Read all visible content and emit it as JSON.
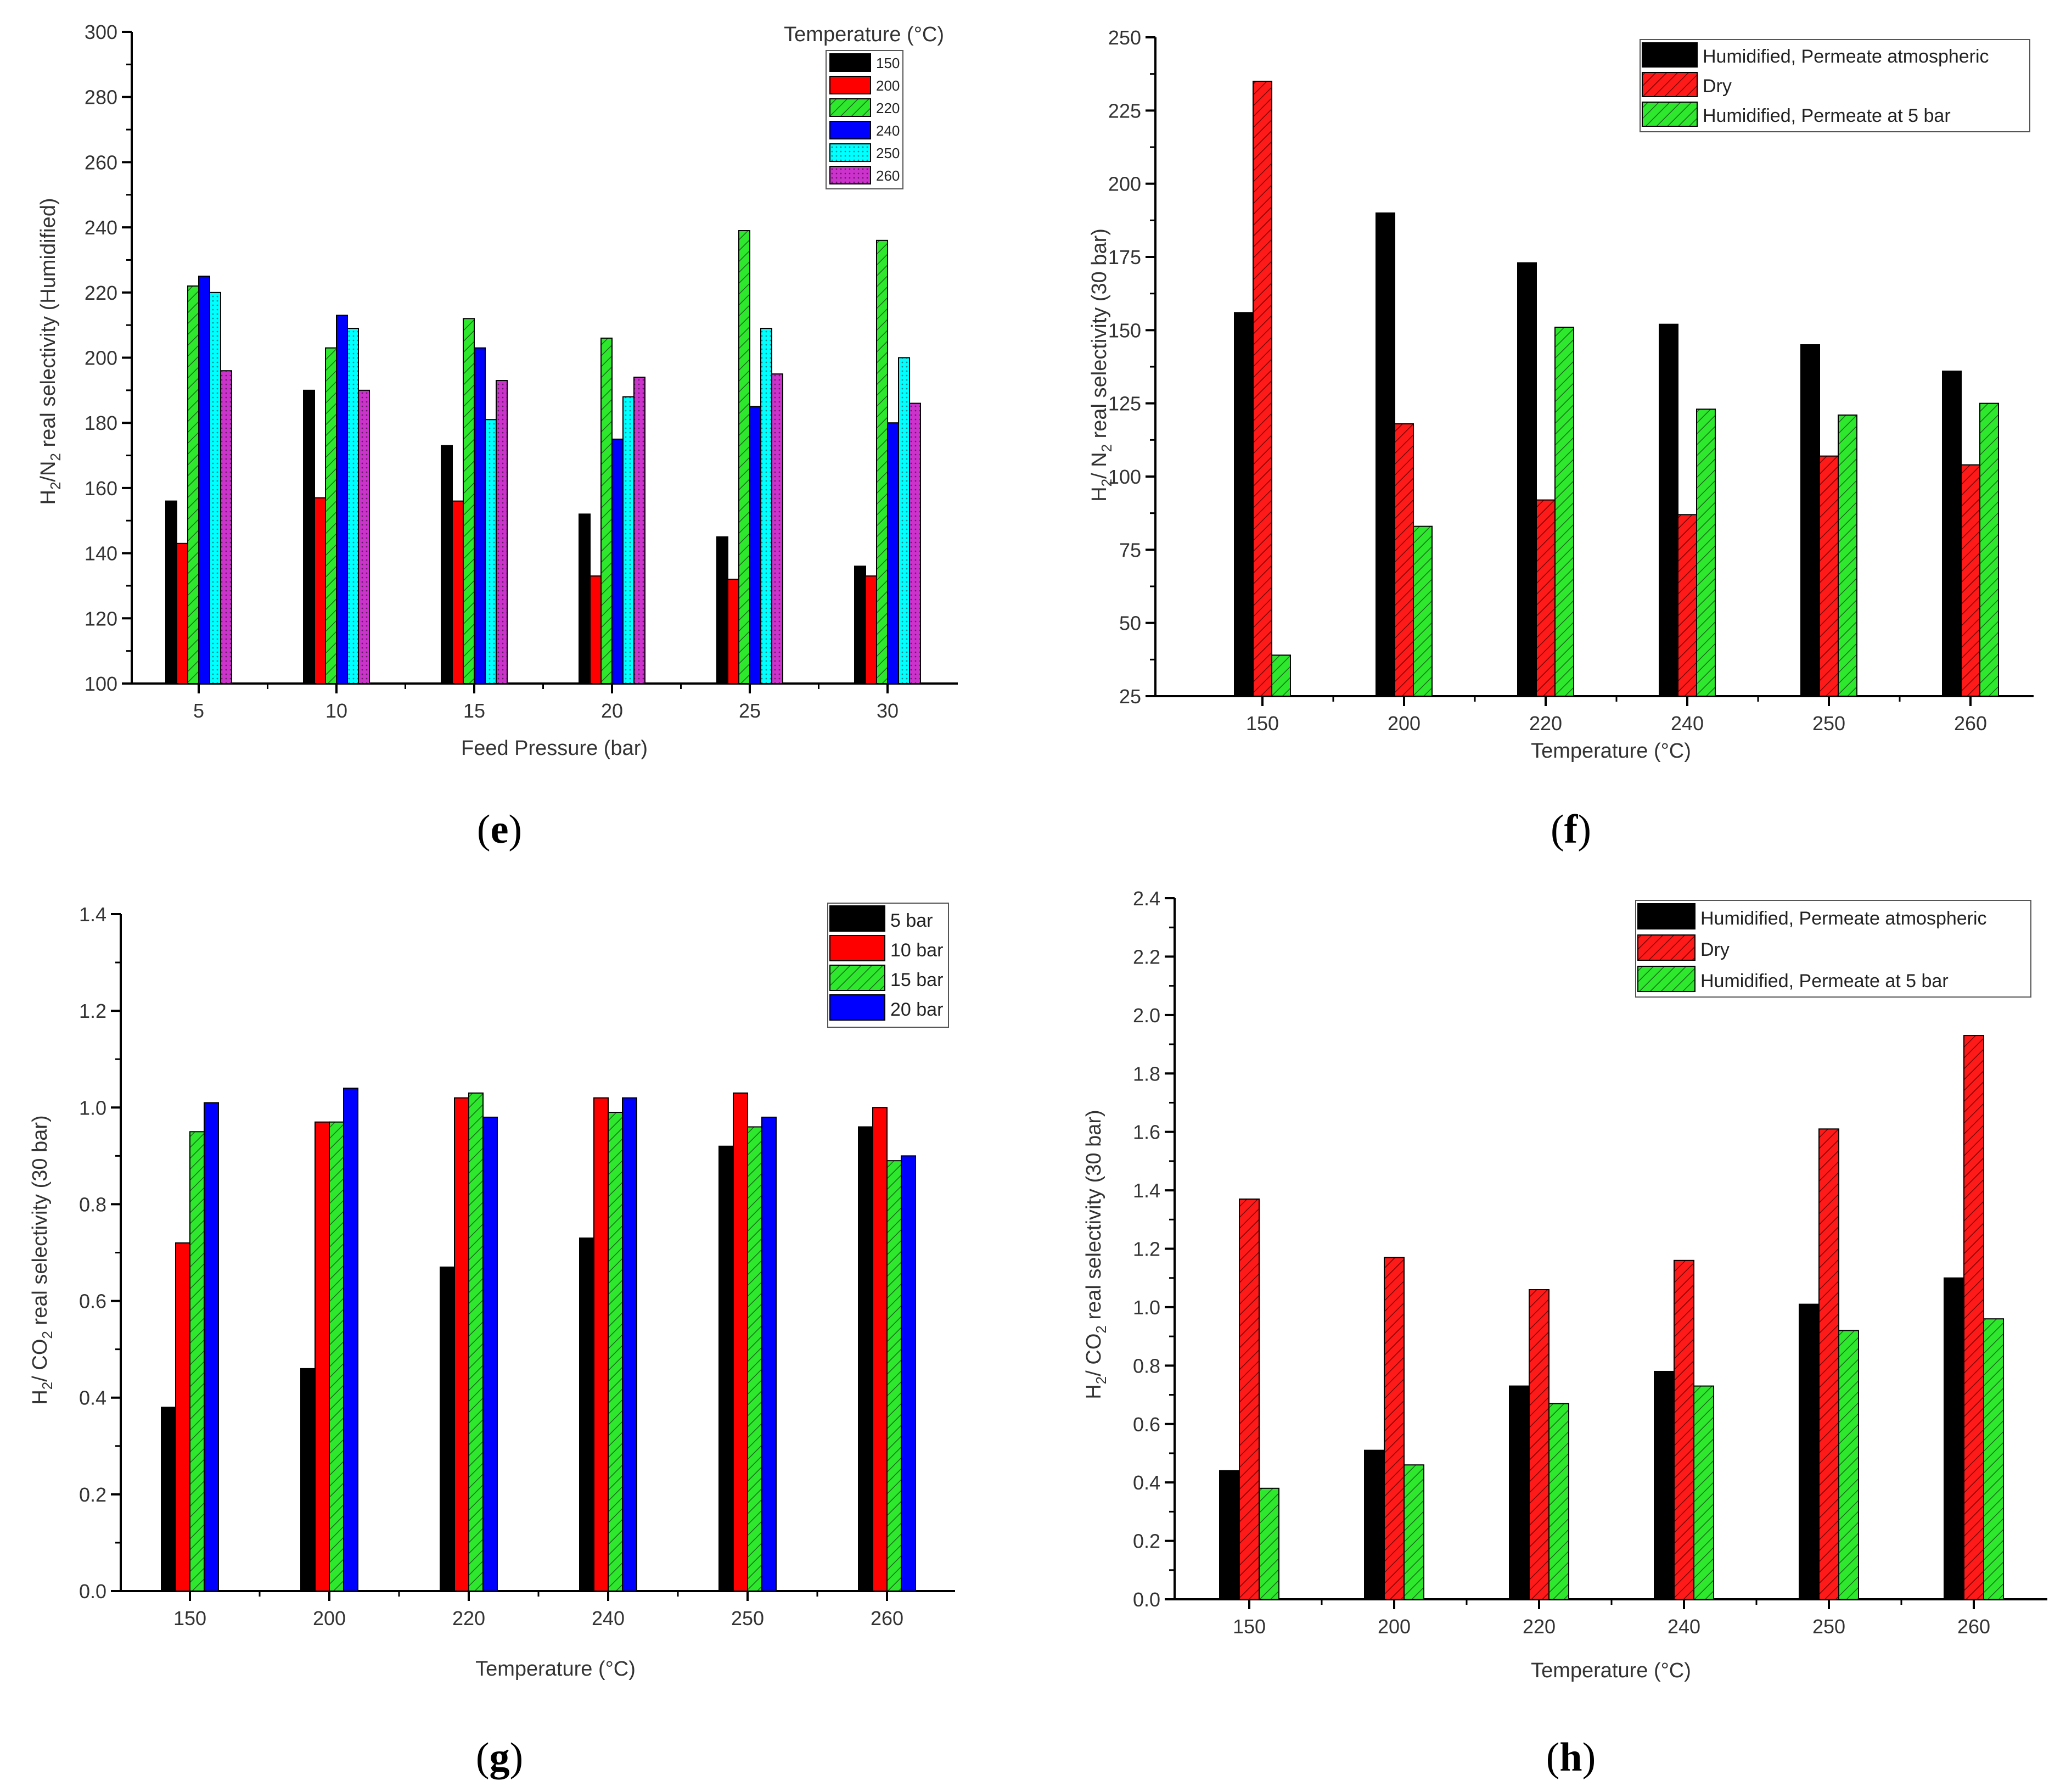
{
  "chart_data": [
    {
      "id": "e",
      "panel_label": "e",
      "type": "bar",
      "ylabel": "H2/N2 real selectivity (Humidified)",
      "xlabel": "Feed Pressure (bar)",
      "legend_title": "Temperature (°C)",
      "ylim": [
        100,
        300
      ],
      "yticks": [
        100,
        120,
        140,
        160,
        180,
        200,
        220,
        240,
        260,
        280,
        300
      ],
      "categories": [
        "5",
        "10",
        "15",
        "20",
        "25",
        "30"
      ],
      "series": [
        {
          "name": "150",
          "color": "#000000",
          "pattern": "solid",
          "values": [
            156,
            190,
            173,
            152,
            145,
            136
          ]
        },
        {
          "name": "200",
          "color": "#ff0000",
          "pattern": "solid",
          "values": [
            143,
            157,
            156,
            133,
            132,
            133
          ]
        },
        {
          "name": "220",
          "color": "#2ee82e",
          "pattern": "hatch",
          "values": [
            222,
            203,
            212,
            206,
            239,
            236
          ]
        },
        {
          "name": "240",
          "color": "#0000ff",
          "pattern": "solid",
          "values": [
            225,
            213,
            203,
            175,
            185,
            180
          ]
        },
        {
          "name": "250",
          "color": "#00ffff",
          "pattern": "dots",
          "values": [
            220,
            209,
            181,
            188,
            209,
            200
          ]
        },
        {
          "name": "260",
          "color": "#cc33cc",
          "pattern": "dots",
          "values": [
            196,
            190,
            193,
            194,
            195,
            186
          ]
        }
      ]
    },
    {
      "id": "f",
      "panel_label": "f",
      "type": "bar",
      "ylabel": "H2/N2 real selectivity (30 bar)",
      "xlabel": "Temperature (°C)",
      "ylim": [
        25,
        250
      ],
      "yticks": [
        25,
        50,
        75,
        100,
        125,
        150,
        175,
        200,
        225,
        250
      ],
      "categories": [
        "150",
        "200",
        "220",
        "240",
        "250",
        "260"
      ],
      "series": [
        {
          "name": "Humidified, Permeate atmospheric",
          "color": "#000000",
          "pattern": "solid",
          "values": [
            156,
            190,
            173,
            152,
            145,
            136
          ]
        },
        {
          "name": "Dry",
          "color": "#ff0000",
          "pattern": "hatch",
          "values": [
            235,
            118,
            92,
            87,
            107,
            104
          ]
        },
        {
          "name": "Humidified, Permeate at 5 bar",
          "color": "#2ee82e",
          "pattern": "hatch",
          "values": [
            39,
            83,
            151,
            123,
            121,
            125
          ]
        }
      ]
    },
    {
      "id": "g",
      "panel_label": "g",
      "type": "bar",
      "ylabel": "H2/ CO2 real selectivity (30 bar)",
      "xlabel": "Temperature (°C)",
      "ylim": [
        0,
        1.4
      ],
      "yticks": [
        0.0,
        0.2,
        0.4,
        0.6,
        0.8,
        1.0,
        1.2,
        1.4
      ],
      "categories": [
        "150",
        "200",
        "220",
        "240",
        "250",
        "260"
      ],
      "series": [
        {
          "name": "5 bar",
          "color": "#000000",
          "pattern": "solid",
          "values": [
            0.38,
            0.46,
            0.67,
            0.73,
            0.92,
            0.96
          ]
        },
        {
          "name": "10 bar",
          "color": "#ff0000",
          "pattern": "solid",
          "values": [
            0.72,
            0.97,
            1.02,
            1.02,
            1.03,
            1.0
          ]
        },
        {
          "name": "15 bar",
          "color": "#2ee82e",
          "pattern": "hatch",
          "values": [
            0.95,
            0.97,
            1.03,
            0.99,
            0.96,
            0.89
          ]
        },
        {
          "name": "20 bar",
          "color": "#0000ff",
          "pattern": "solid",
          "values": [
            1.01,
            1.04,
            0.98,
            1.02,
            0.98,
            0.9
          ]
        }
      ]
    },
    {
      "id": "h",
      "panel_label": "h",
      "type": "bar",
      "ylabel": "H2/ CO2 real selectivity (30 bar)",
      "xlabel": "Temperature (°C)",
      "ylim": [
        0,
        2.4
      ],
      "yticks": [
        0.0,
        0.2,
        0.4,
        0.6,
        0.8,
        1.0,
        1.2,
        1.4,
        1.6,
        1.8,
        2.0,
        2.2,
        2.4
      ],
      "categories": [
        "150",
        "200",
        "220",
        "240",
        "250",
        "260"
      ],
      "series": [
        {
          "name": "Humidified, Permeate atmospheric",
          "color": "#000000",
          "pattern": "solid",
          "values": [
            0.44,
            0.51,
            0.73,
            0.78,
            1.01,
            1.1
          ]
        },
        {
          "name": "Dry",
          "color": "#ff0000",
          "pattern": "hatch",
          "values": [
            1.37,
            1.17,
            1.06,
            1.16,
            1.61,
            1.93
          ]
        },
        {
          "name": "Humidified, Permeate at 5 bar",
          "color": "#2ee82e",
          "pattern": "hatch",
          "values": [
            0.38,
            0.46,
            0.67,
            0.73,
            0.92,
            0.96
          ]
        }
      ]
    }
  ]
}
